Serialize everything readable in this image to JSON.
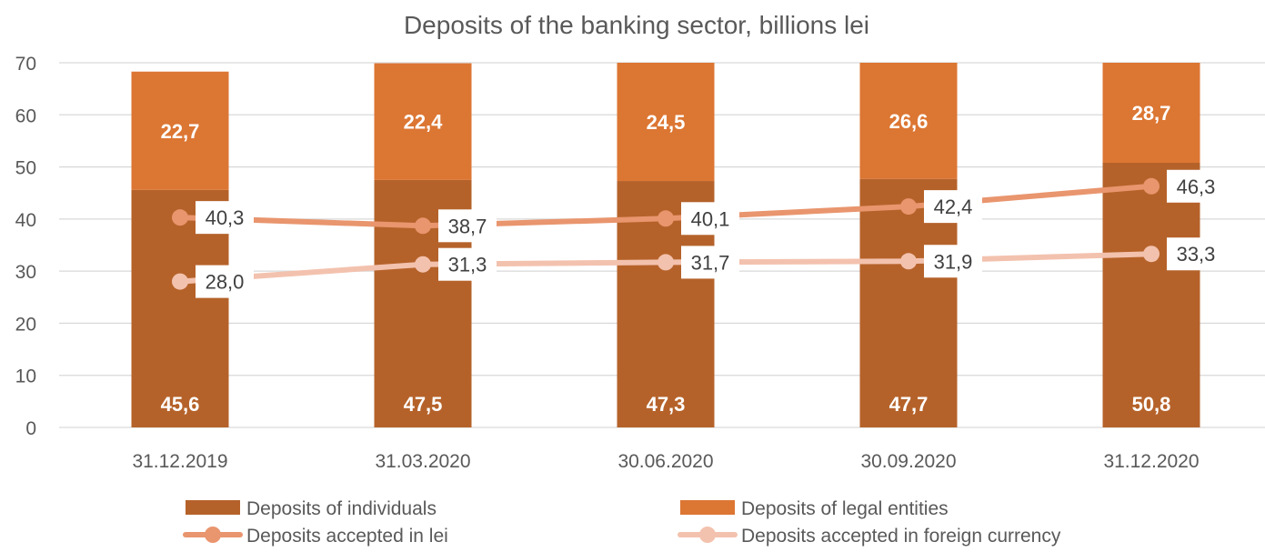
{
  "chart_data": {
    "type": "bar",
    "stacked": true,
    "title": "Deposits of the banking sector, billions lei",
    "xlabel": "",
    "ylabel": "",
    "ylim": [
      0,
      70
    ],
    "yticks": [
      "0",
      "10",
      "20",
      "30",
      "40",
      "50",
      "60",
      "70"
    ],
    "grid": true,
    "legend_position": "bottom",
    "categories": [
      "31.12.2019",
      "31.03.2020",
      "30.06.2020",
      "30.09.2020",
      "31.12.2020"
    ],
    "bar_series": [
      {
        "name": "Deposits of individuals",
        "color": "#b5622a",
        "values": [
          45.6,
          47.5,
          47.3,
          47.7,
          50.8
        ],
        "labels": [
          "45,6",
          "47,5",
          "47,3",
          "47,7",
          "50,8"
        ]
      },
      {
        "name": "Deposits of legal entities",
        "color": "#dc7633",
        "values": [
          22.7,
          22.4,
          24.5,
          26.6,
          28.7
        ],
        "labels": [
          "22,7",
          "22,4",
          "24,5",
          "26,6",
          "28,7"
        ]
      }
    ],
    "line_series": [
      {
        "name": "Deposits accepted in lei",
        "color": "#e9956e",
        "values": [
          40.3,
          38.7,
          40.1,
          42.4,
          46.3
        ],
        "labels": [
          "40,3",
          "38,7",
          "40,1",
          "42,4",
          "46,3"
        ]
      },
      {
        "name": "Deposits accepted in foreign currency",
        "color": "#f3c2ae",
        "values": [
          28.0,
          31.3,
          31.7,
          31.9,
          33.3
        ],
        "labels": [
          "28,0",
          "31,3",
          "31,7",
          "31,9",
          "33,3"
        ]
      }
    ]
  }
}
